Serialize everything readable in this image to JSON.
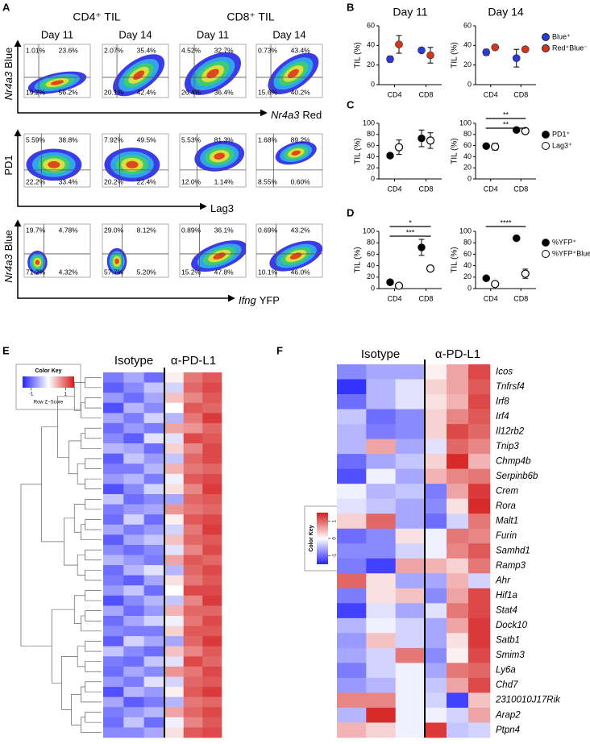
{
  "panel_a": {
    "label": "A",
    "groups": [
      "CD4⁺ TIL",
      "CD8⁺ TIL"
    ],
    "days": [
      "Day 11",
      "Day 14",
      "Day 11",
      "Day 14"
    ],
    "rows": [
      {
        "y_label": {
          "gene": "Nr4a3",
          "text": "Blue"
        },
        "x_label": {
          "gene": "Nr4a3",
          "text": "Red"
        },
        "plots": [
          [
            "1.01%",
            "23.6%",
            "19.2%",
            "56.2%"
          ],
          [
            "2.07%",
            "35.4%",
            "20.1%",
            "42.4%"
          ],
          [
            "4.52%",
            "32.7%",
            "26.4%",
            "36.4%"
          ],
          [
            "0.73%",
            "43.4%",
            "15.6%",
            "40.2%"
          ]
        ]
      },
      {
        "y_label": {
          "text": "PD1"
        },
        "x_label": {
          "text": "Lag3"
        },
        "plots": [
          [
            "5.59%",
            "38.8%",
            "22.2%",
            "33.4%"
          ],
          [
            "7.92%",
            "49.5%",
            "20.2%",
            "22.4%"
          ],
          [
            "5.53%",
            "81.3%",
            "12.0%",
            "1.14%"
          ],
          [
            "1.68%",
            "89.2%",
            "8.55%",
            "0.60%"
          ]
        ]
      },
      {
        "y_label": {
          "gene": "Nr4a3",
          "text": "Blue"
        },
        "x_label": {
          "gene": "Ifng",
          "text": "YFP"
        },
        "plots": [
          [
            "19.7%",
            "4.78%",
            "71.2%",
            "4.32%"
          ],
          [
            "29.0%",
            "8.12%",
            "57.7%",
            "5.20%"
          ],
          [
            "0.89%",
            "36.1%",
            "15.2%",
            "47.8%"
          ],
          [
            "0.69%",
            "43.2%",
            "10.1%",
            "46.0%"
          ]
        ]
      }
    ]
  },
  "chart_data": [
    {
      "type": "dot",
      "panel": "B",
      "title": "Day 11",
      "ylabel": "TIL (%)",
      "categories": [
        "CD4",
        "CD8"
      ],
      "ylim": [
        0,
        60
      ],
      "yticks": [
        0,
        20,
        40,
        60
      ],
      "series": [
        {
          "color": "#2b3ad8",
          "marker": "filled",
          "values": [
            26,
            35
          ],
          "errors": [
            3,
            2
          ]
        },
        {
          "color": "#d2361f",
          "marker": "filled",
          "values": [
            41,
            30
          ],
          "errors": [
            9,
            8
          ]
        }
      ]
    },
    {
      "type": "dot",
      "title": "Day 14",
      "ylabel": "TIL (%)",
      "categories": [
        "CD4",
        "CD8"
      ],
      "ylim": [
        0,
        60
      ],
      "yticks": [
        0,
        20,
        40,
        60
      ],
      "legend": "right",
      "series": [
        {
          "name": "Blue⁺",
          "color": "#2b3ad8",
          "marker": "filled",
          "values": [
            33,
            27
          ],
          "errors": [
            3,
            9
          ]
        },
        {
          "name": "Red⁺Blue⁻",
          "color": "#d2361f",
          "marker": "filled",
          "values": [
            38,
            36
          ],
          "errors": [
            1,
            2
          ]
        }
      ]
    },
    {
      "type": "dot",
      "panel": "C",
      "ylabel": "TIL (%)",
      "categories": [
        "CD4",
        "CD8"
      ],
      "ylim": [
        0,
        100
      ],
      "yticks": [
        0,
        20,
        40,
        60,
        80,
        100
      ],
      "series": [
        {
          "color": "#000000",
          "marker": "filled",
          "values": [
            42,
            73
          ],
          "errors": [
            2,
            15
          ]
        },
        {
          "color": "#000000",
          "marker": "open",
          "values": [
            57,
            69
          ],
          "errors": [
            13,
            14
          ]
        }
      ]
    },
    {
      "type": "dot",
      "ylabel": "TIL (%)",
      "categories": [
        "CD4",
        "CD8"
      ],
      "ylim": [
        0,
        100
      ],
      "yticks": [
        0,
        20,
        40,
        60,
        80,
        100
      ],
      "legend": "right",
      "series": [
        {
          "name": "PD1⁺",
          "color": "#000000",
          "marker": "filled",
          "values": [
            59,
            88
          ],
          "errors": [
            4,
            2
          ]
        },
        {
          "name": "Lag3⁺",
          "color": "#000000",
          "marker": "open",
          "values": [
            58,
            86
          ],
          "errors": [
            6,
            1
          ]
        }
      ],
      "annotations": [
        {
          "text": "**"
        },
        {
          "text": "**"
        }
      ]
    },
    {
      "type": "dot",
      "panel": "D",
      "ylabel": "TIL (%)",
      "categories": [
        "CD4",
        "CD8"
      ],
      "ylim": [
        0,
        100
      ],
      "yticks": [
        0,
        20,
        40,
        60,
        80,
        100
      ],
      "series": [
        {
          "color": "#000000",
          "marker": "filled",
          "values": [
            11,
            72
          ],
          "errors": [
            1,
            14
          ]
        },
        {
          "color": "#000000",
          "marker": "open",
          "values": [
            5,
            35
          ],
          "errors": [
            1,
            2
          ]
        }
      ],
      "annotations": [
        {
          "text": "*"
        },
        {
          "text": "***"
        }
      ]
    },
    {
      "type": "dot",
      "ylabel": "TIL (%)",
      "categories": [
        "CD4",
        "CD8"
      ],
      "ylim": [
        0,
        100
      ],
      "yticks": [
        0,
        20,
        40,
        60,
        80,
        100
      ],
      "legend": "right",
      "series": [
        {
          "name": "%YFP⁺",
          "color": "#000000",
          "marker": "filled",
          "values": [
            18,
            88
          ],
          "errors": [
            3,
            2
          ]
        },
        {
          "name": "%YFP⁺Blue⁺",
          "color": "#000000",
          "marker": "open",
          "values": [
            8,
            26
          ],
          "errors": [
            1,
            8
          ]
        }
      ],
      "annotations": [
        {
          "text": "****"
        }
      ]
    }
  ],
  "panel_e": {
    "label": "E",
    "color_key": {
      "title": "Color Key",
      "ticks": [
        -1,
        1
      ],
      "label": "Row Z−Score",
      "zlim": [
        -1.5,
        1.5
      ],
      "low": "#2424ff",
      "mid": "#ffffff",
      "high": "#d41c1c"
    },
    "groups": [
      "Isotype",
      "α-PD-L1"
    ],
    "rows": [
      [
        -0.9,
        -0.6,
        -1.0,
        0.1,
        0.9,
        1.1
      ],
      [
        -1.1,
        -0.8,
        -0.4,
        -0.3,
        1.0,
        1.2
      ],
      [
        -0.7,
        -1.0,
        -0.6,
        0.4,
        0.8,
        1.1
      ],
      [
        -1.2,
        -0.5,
        -0.8,
        0.0,
        1.1,
        1.0
      ],
      [
        -0.6,
        -0.9,
        -0.3,
        -0.5,
        0.9,
        1.3
      ],
      [
        -1.0,
        -0.7,
        -0.9,
        0.6,
        0.7,
        1.0
      ],
      [
        -0.8,
        -1.1,
        -0.2,
        -0.2,
        1.2,
        1.1
      ],
      [
        -0.5,
        -0.6,
        -1.0,
        0.3,
        0.8,
        1.2
      ],
      [
        -1.1,
        -0.4,
        -0.7,
        -0.4,
        1.0,
        1.2
      ],
      [
        -0.9,
        -0.9,
        -0.5,
        0.5,
        0.9,
        1.0
      ],
      [
        -0.7,
        -0.5,
        -0.9,
        -0.1,
        1.1,
        1.2
      ],
      [
        -1.2,
        -0.8,
        -0.3,
        0.2,
        0.8,
        1.3
      ],
      [
        -0.4,
        -1.0,
        -0.8,
        -0.6,
        1.0,
        1.1
      ],
      [
        -0.9,
        -0.7,
        -0.6,
        0.7,
        0.9,
        1.0
      ],
      [
        -1.0,
        -0.3,
        -1.0,
        0.1,
        1.1,
        1.2
      ],
      [
        -0.6,
        -0.9,
        -0.7,
        -0.3,
        0.9,
        1.3
      ],
      [
        -1.1,
        -0.6,
        -0.4,
        0.4,
        1.0,
        1.1
      ],
      [
        -0.8,
        -1.0,
        -0.8,
        -0.2,
        0.8,
        1.2
      ],
      [
        -0.5,
        -0.7,
        -0.9,
        0.6,
        1.1,
        1.0
      ],
      [
        -1.0,
        -0.5,
        -0.2,
        -0.5,
        1.0,
        1.2
      ],
      [
        -0.9,
        -1.1,
        -0.6,
        0.2,
        0.9,
        1.1
      ],
      [
        -0.7,
        -0.4,
        -1.0,
        0.0,
        1.2,
        1.2
      ],
      [
        -1.2,
        -0.8,
        -0.5,
        -0.4,
        0.8,
        1.3
      ],
      [
        -0.6,
        -1.0,
        -0.7,
        0.5,
        1.0,
        1.0
      ],
      [
        -1.0,
        -0.6,
        -0.3,
        -0.1,
        0.9,
        1.2
      ],
      [
        -0.8,
        -0.9,
        -0.9,
        0.3,
        1.1,
        1.1
      ],
      [
        -1.1,
        -0.3,
        -0.6,
        -0.6,
        1.0,
        1.3
      ],
      [
        -0.4,
        -0.8,
        -1.0,
        0.4,
        0.8,
        1.1
      ],
      [
        -0.9,
        -1.0,
        -0.4,
        -0.2,
        1.2,
        1.0
      ],
      [
        -1.0,
        -0.6,
        -0.8,
        0.7,
        0.9,
        1.2
      ],
      [
        -0.7,
        -0.9,
        -0.2,
        -0.3,
        1.0,
        1.1
      ],
      [
        -1.2,
        -0.5,
        -0.7,
        0.1,
        1.1,
        1.3
      ],
      [
        -0.6,
        -1.1,
        -0.9,
        -0.5,
        0.9,
        1.0
      ],
      [
        -0.9,
        -0.7,
        -0.5,
        0.6,
        1.0,
        1.2
      ],
      [
        -1.0,
        -0.4,
        -1.0,
        -0.1,
        0.8,
        1.1
      ],
      [
        -0.8,
        -0.8,
        -0.6,
        0.2,
        1.1,
        1.2
      ]
    ]
  },
  "panel_f": {
    "label": "F",
    "color_key": {
      "title": "Color Key",
      "ticks": [
        -1,
        0,
        1
      ],
      "label": "Row Z−Score",
      "zlim": [
        -1.5,
        1.5
      ],
      "low": "#2424ff",
      "mid": "#ffffff",
      "high": "#d41c1c"
    },
    "groups": [
      "Isotype",
      "α-PD-L1"
    ],
    "genes": [
      "Icos",
      "Tnfrsf4",
      "Irf8",
      "Irf4",
      "Il12rb2",
      "Tnip3",
      "Chmp4b",
      "Serpinb6b",
      "Crem",
      "Rora",
      "Malt1",
      "Furin",
      "Samhd1",
      "Ramp3",
      "Ahr",
      "Hif1a",
      "Stat4",
      "Dock10",
      "Satb1",
      "Smim3",
      "Ly6a",
      "Chd7",
      "2310010J17Rik",
      "Arap2",
      "Ptpn4"
    ],
    "values": [
      [
        -0.8,
        -0.6,
        -0.6,
        0.1,
        0.6,
        1.2
      ],
      [
        -1.4,
        -0.5,
        -0.2,
        0.3,
        0.6,
        1.1
      ],
      [
        -1.0,
        -0.5,
        -0.2,
        0.2,
        0.5,
        1.2
      ],
      [
        -0.4,
        -1.0,
        -0.8,
        0.3,
        0.8,
        1.1
      ],
      [
        -0.5,
        -0.9,
        -0.8,
        0.3,
        1.2,
        1.0
      ],
      [
        -0.5,
        0.6,
        -0.6,
        -0.2,
        1.0,
        0.8
      ],
      [
        -1.0,
        -0.6,
        -0.4,
        0.3,
        1.4,
        0.5
      ],
      [
        -1.2,
        -0.1,
        -0.6,
        0.5,
        0.8,
        0.9
      ],
      [
        -0.1,
        -0.5,
        -0.4,
        -0.9,
        0.6,
        1.3
      ],
      [
        -0.2,
        -0.4,
        -0.6,
        -0.8,
        0.2,
        1.4
      ],
      [
        0.3,
        1.0,
        -0.6,
        -1.0,
        -0.3,
        0.9
      ],
      [
        -1.0,
        -0.8,
        0.2,
        -0.1,
        0.9,
        0.8
      ],
      [
        -0.8,
        -0.8,
        -0.3,
        -0.1,
        0.8,
        1.1
      ],
      [
        -0.9,
        -1.3,
        0.6,
        0.5,
        0.3,
        0.9
      ],
      [
        1.0,
        0.2,
        -0.6,
        -0.6,
        0.5,
        -0.3
      ],
      [
        -0.9,
        0.2,
        0.4,
        -0.8,
        0.6,
        1.2
      ],
      [
        -1.3,
        -0.2,
        -0.6,
        -0.2,
        0.9,
        1.2
      ],
      [
        -0.5,
        -0.1,
        -0.3,
        -0.6,
        0.6,
        1.3
      ],
      [
        -0.7,
        0.4,
        -0.3,
        -0.6,
        0.2,
        1.3
      ],
      [
        -0.6,
        -0.3,
        0.9,
        -0.8,
        0.1,
        1.2
      ],
      [
        -0.9,
        -0.3,
        -0.1,
        -0.6,
        0.9,
        1.0
      ],
      [
        -0.7,
        -0.5,
        -0.1,
        -0.4,
        0.6,
        1.2
      ],
      [
        0.8,
        0.8,
        -0.1,
        -0.3,
        -1.3,
        0.4
      ],
      [
        -0.5,
        1.4,
        -0.1,
        -0.1,
        -0.3,
        0.6
      ],
      [
        0.5,
        0.3,
        -0.1,
        1.3,
        -0.4,
        -0.3
      ]
    ]
  }
}
